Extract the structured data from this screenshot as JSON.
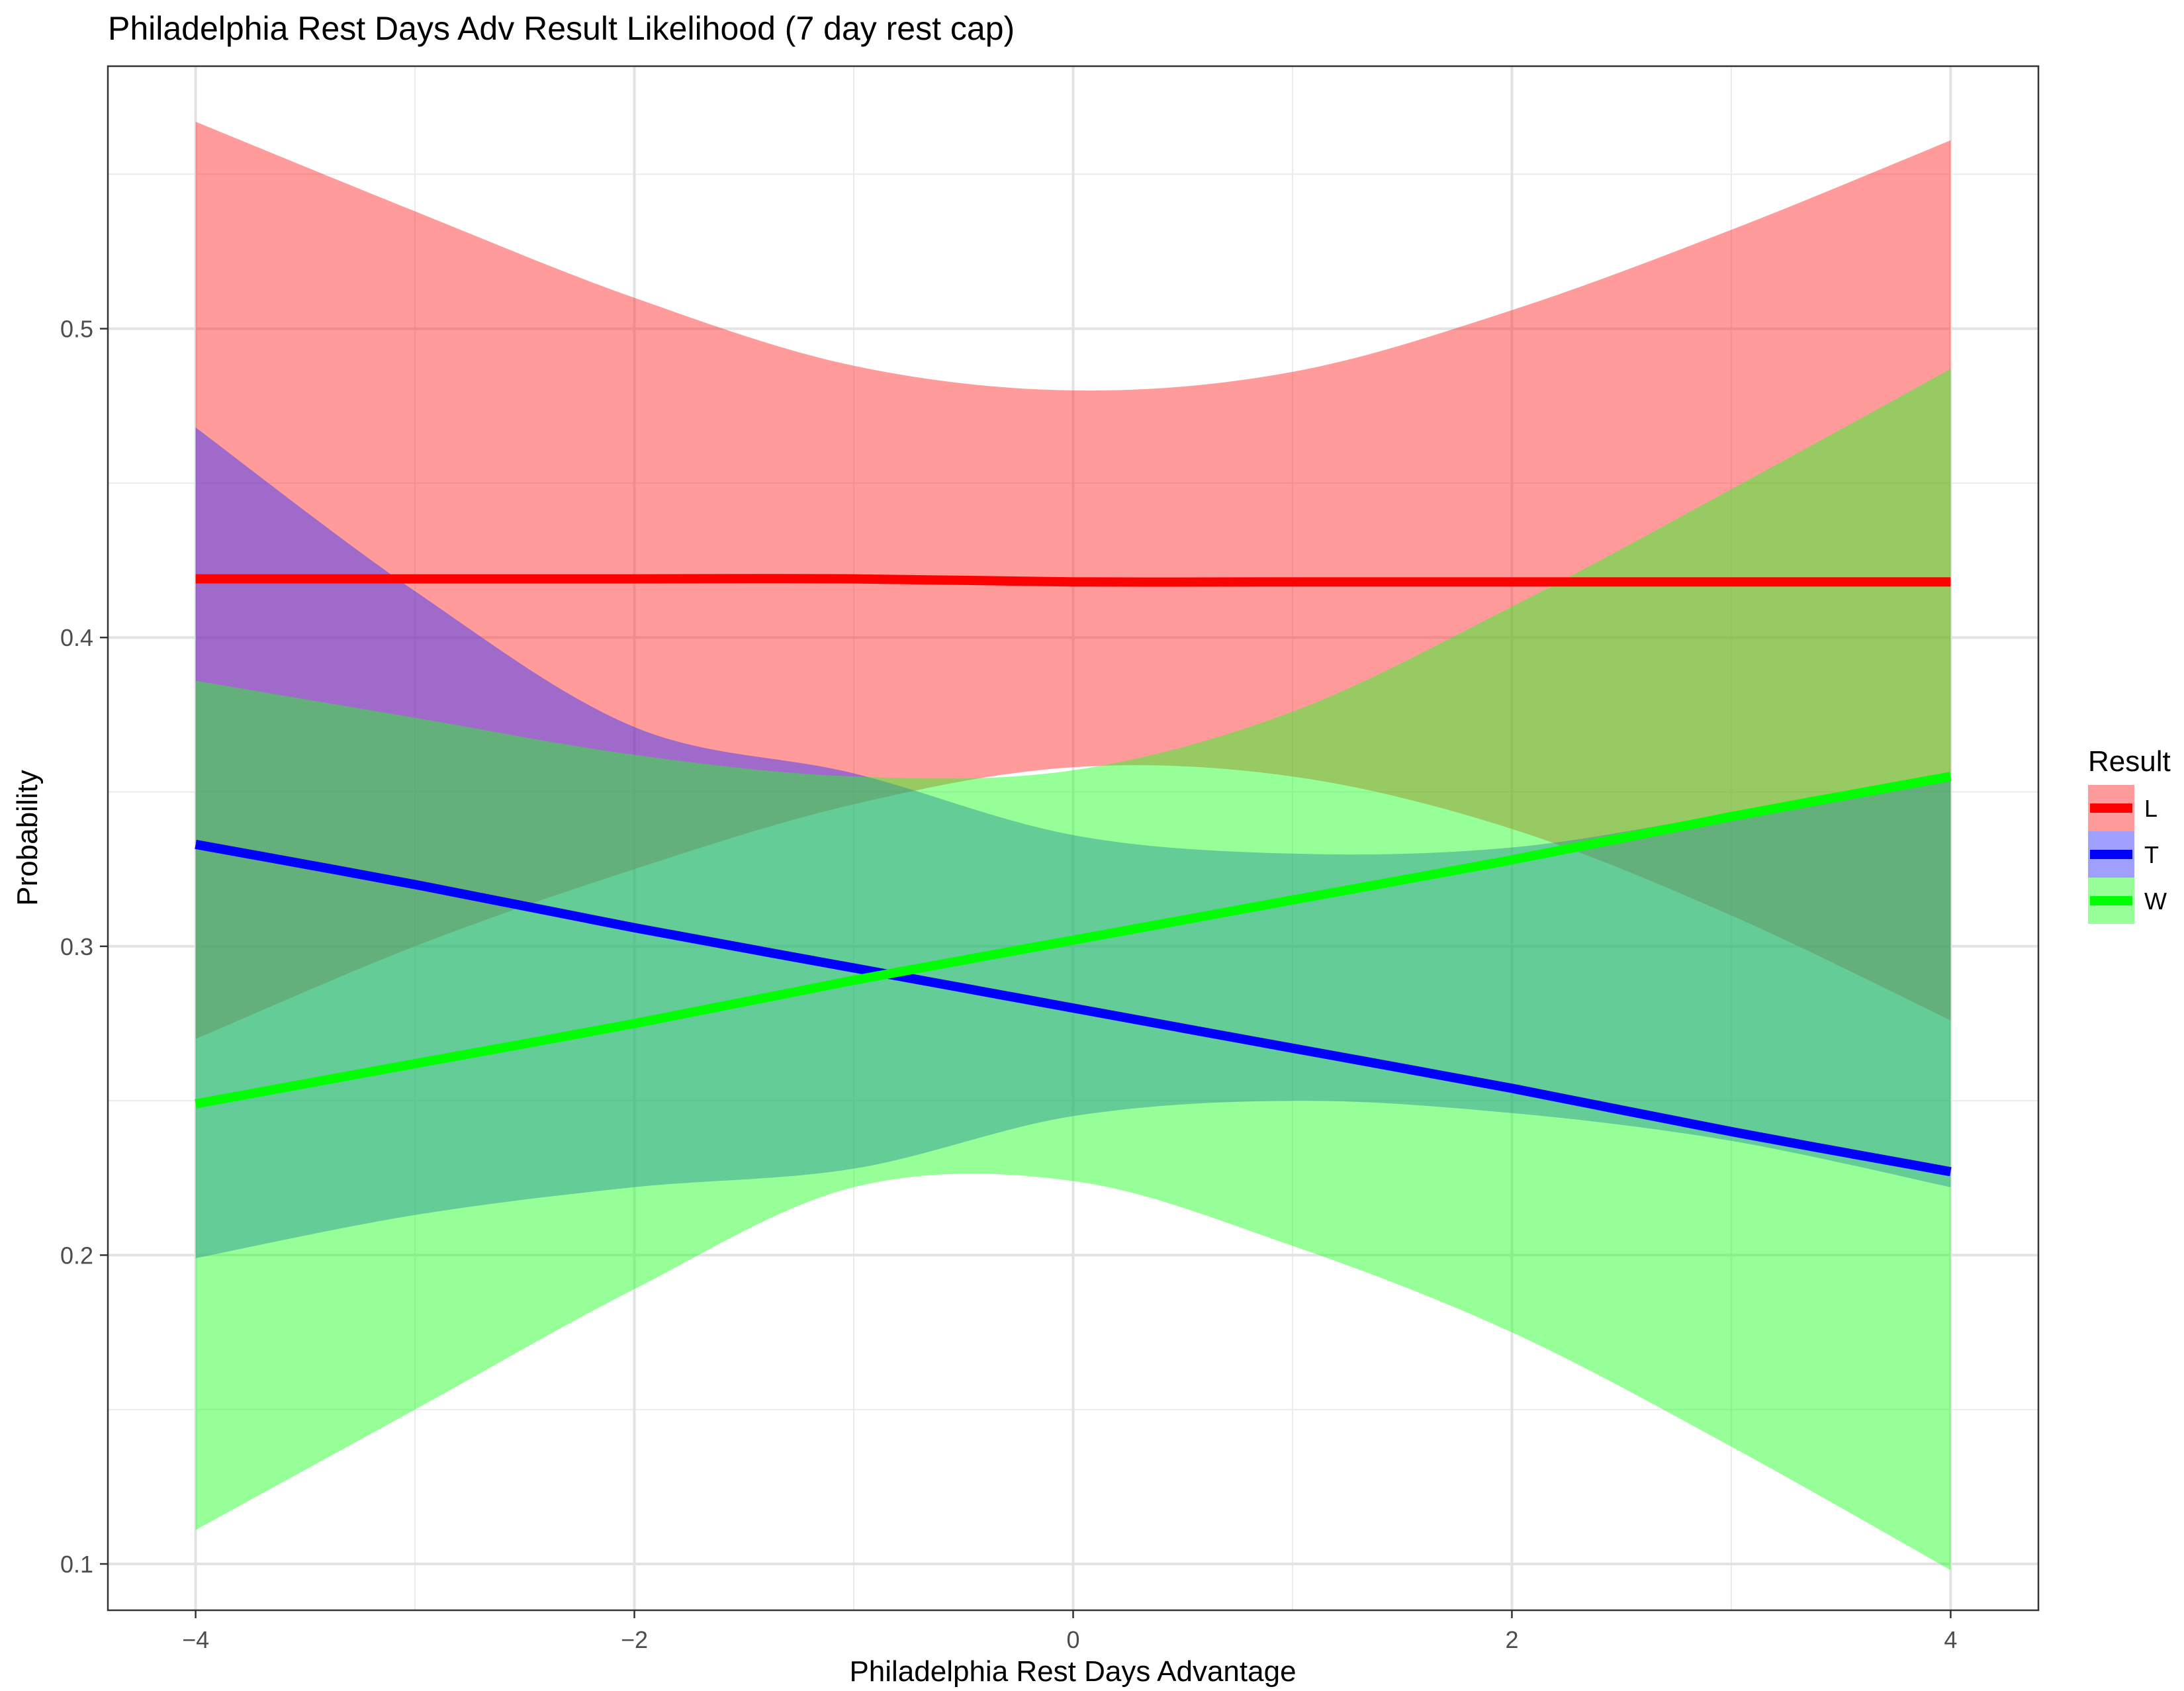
{
  "chart_data": {
    "type": "line",
    "title": "Philadelphia Rest Days Adv Result Likelihood (7 day rest cap)",
    "xlabel": "Philadelphia Rest Days Advantage",
    "ylabel": "Probability",
    "xlim": [
      -4.4,
      4.4
    ],
    "ylim": [
      0.085,
      0.585
    ],
    "x_ticks": [
      -4,
      -2,
      0,
      2,
      4
    ],
    "x_tick_labels": [
      "−4",
      "−2",
      "0",
      "2",
      "4"
    ],
    "x_minor_ticks": [
      -3,
      -1,
      1,
      3
    ],
    "y_ticks": [
      0.1,
      0.2,
      0.3,
      0.4,
      0.5
    ],
    "y_tick_labels": [
      "0.1",
      "0.2",
      "0.3",
      "0.4",
      "0.5"
    ],
    "y_minor_ticks": [
      0.15,
      0.25,
      0.35,
      0.45,
      0.55
    ],
    "grid": true,
    "legend": {
      "title": "Result",
      "position": "right"
    },
    "x": [
      -4,
      -3,
      -2,
      -1,
      0,
      1,
      2,
      3,
      4
    ],
    "series": [
      {
        "name": "L",
        "color": "#ff0000",
        "band_color": "#ff2a2a",
        "values": [
          0.419,
          0.419,
          0.419,
          0.419,
          0.418,
          0.418,
          0.418,
          0.418,
          0.418
        ],
        "lower": [
          0.27,
          0.3,
          0.325,
          0.346,
          0.358,
          0.355,
          0.338,
          0.31,
          0.276
        ],
        "upper": [
          0.567,
          0.538,
          0.51,
          0.488,
          0.48,
          0.486,
          0.506,
          0.532,
          0.561
        ]
      },
      {
        "name": "T",
        "color": "#0000ff",
        "band_color": "#3333ff",
        "values": [
          0.333,
          0.32,
          0.306,
          0.293,
          0.28,
          0.267,
          0.254,
          0.24,
          0.227
        ],
        "lower": [
          0.199,
          0.213,
          0.222,
          0.228,
          0.245,
          0.25,
          0.246,
          0.237,
          0.222
        ],
        "upper": [
          0.468,
          0.415,
          0.371,
          0.356,
          0.336,
          0.33,
          0.332,
          0.343,
          0.354
        ]
      },
      {
        "name": "W",
        "color": "#00ff00",
        "band_color": "#22ff22",
        "values": [
          0.249,
          0.262,
          0.275,
          0.289,
          0.302,
          0.315,
          0.328,
          0.342,
          0.355
        ],
        "lower": [
          0.111,
          0.15,
          0.189,
          0.222,
          0.224,
          0.203,
          0.175,
          0.138,
          0.098
        ],
        "upper": [
          0.386,
          0.374,
          0.362,
          0.355,
          0.357,
          0.376,
          0.41,
          0.448,
          0.487
        ]
      }
    ]
  }
}
